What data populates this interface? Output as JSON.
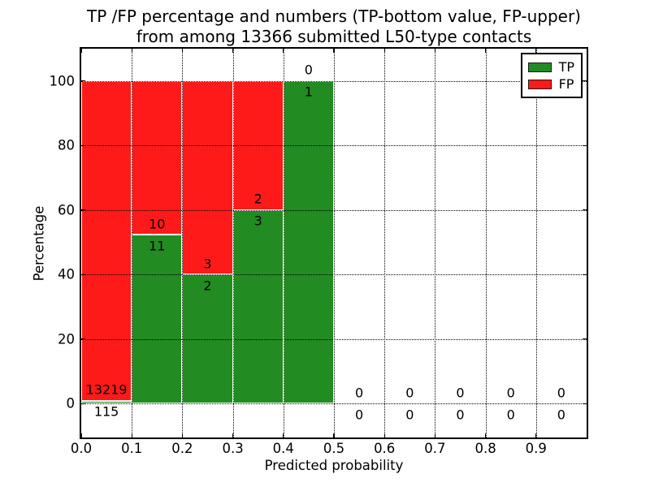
{
  "figure": {
    "title_line1": "TP /FP percentage and numbers (TP-bottom value, FP-upper)",
    "title_line2": "from among 13366 submitted L50-type contacts"
  },
  "chart_data": {
    "type": "bar",
    "stacked": true,
    "title": "TP /FP percentage and numbers (TP-bottom value, FP-upper)\nfrom among 13366 submitted L50-type contacts",
    "xlabel": "Predicted probability",
    "ylabel": "Percentage",
    "total_submitted_contacts": 13366,
    "xlim": [
      0.0,
      1.0
    ],
    "ylim": [
      -10.5,
      110
    ],
    "grid": true,
    "grid_style": "dotted",
    "xticks": [
      "0.0",
      "0.1",
      "0.2",
      "0.3",
      "0.4",
      "0.5",
      "0.6",
      "0.7",
      "0.8",
      "0.9"
    ],
    "yticks": [
      0,
      20,
      40,
      60,
      80,
      100
    ],
    "legend": {
      "position": "upper right",
      "entries": [
        {
          "label": "TP",
          "color": "#228b22"
        },
        {
          "label": "FP",
          "color": "#ff1a1a"
        }
      ]
    },
    "colors": {
      "tp": "#228b22",
      "fp": "#ff1a1a",
      "bar_edge": "#ffffff"
    },
    "bins": [
      {
        "x_start": 0.0,
        "x_end": 0.1,
        "tp_count": 115,
        "fp_count": 13219,
        "tp_pct": 0.86,
        "fp_pct": 99.14
      },
      {
        "x_start": 0.1,
        "x_end": 0.2,
        "tp_count": 11,
        "fp_count": 10,
        "tp_pct": 52.38,
        "fp_pct": 47.62
      },
      {
        "x_start": 0.2,
        "x_end": 0.3,
        "tp_count": 2,
        "fp_count": 3,
        "tp_pct": 40.0,
        "fp_pct": 60.0
      },
      {
        "x_start": 0.3,
        "x_end": 0.4,
        "tp_count": 3,
        "fp_count": 2,
        "tp_pct": 60.0,
        "fp_pct": 40.0
      },
      {
        "x_start": 0.4,
        "x_end": 0.5,
        "tp_count": 1,
        "fp_count": 0,
        "tp_pct": 100.0,
        "fp_pct": 0.0
      },
      {
        "x_start": 0.5,
        "x_end": 0.6,
        "tp_count": 0,
        "fp_count": 0,
        "tp_pct": 0.0,
        "fp_pct": 0.0
      },
      {
        "x_start": 0.6,
        "x_end": 0.7,
        "tp_count": 0,
        "fp_count": 0,
        "tp_pct": 0.0,
        "fp_pct": 0.0
      },
      {
        "x_start": 0.7,
        "x_end": 0.8,
        "tp_count": 0,
        "fp_count": 0,
        "tp_pct": 0.0,
        "fp_pct": 0.0
      },
      {
        "x_start": 0.8,
        "x_end": 0.9,
        "tp_count": 0,
        "fp_count": 0,
        "tp_pct": 0.0,
        "fp_pct": 0.0
      },
      {
        "x_start": 0.9,
        "x_end": 1.0,
        "tp_count": 0,
        "fp_count": 0,
        "tp_pct": 0.0,
        "fp_pct": 0.0
      }
    ]
  }
}
